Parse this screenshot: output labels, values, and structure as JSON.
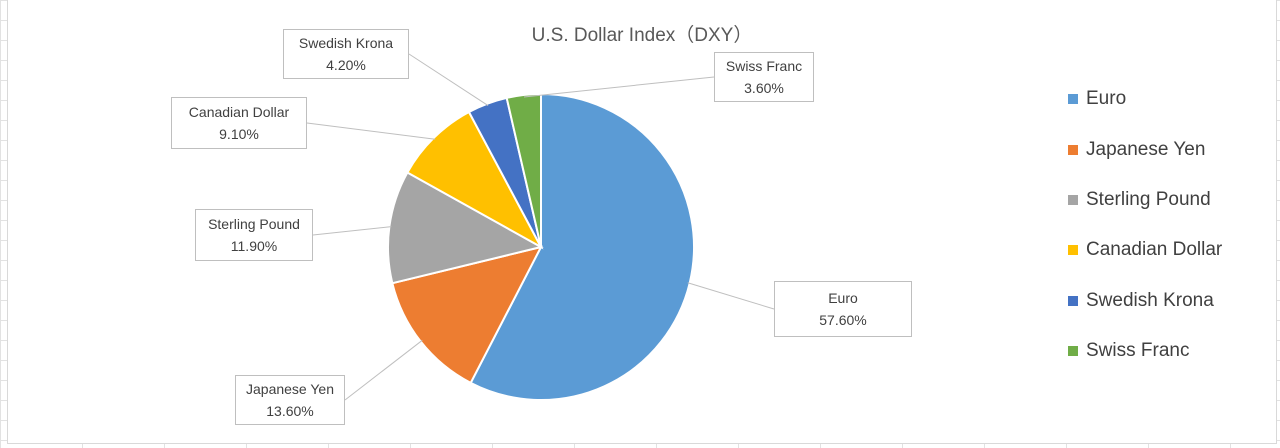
{
  "chart_data": {
    "type": "pie",
    "title": "U.S. Dollar Index（DXY）",
    "categories": [
      "Euro",
      "Japanese Yen",
      "Sterling Pound",
      "Canadian Dollar",
      "Swedish Krona",
      "Swiss Franc"
    ],
    "values": [
      57.6,
      13.6,
      11.9,
      9.1,
      4.2,
      3.6
    ],
    "value_labels": [
      "57.60%",
      "13.60%",
      "11.90%",
      "9.10%",
      "4.20%",
      "3.60%"
    ],
    "colors": [
      "#5B9BD5",
      "#ED7D31",
      "#A5A5A5",
      "#FFC000",
      "#4472C4",
      "#70AD47"
    ],
    "legend_position": "right",
    "data_label_style": "callout boxes with leader lines"
  }
}
